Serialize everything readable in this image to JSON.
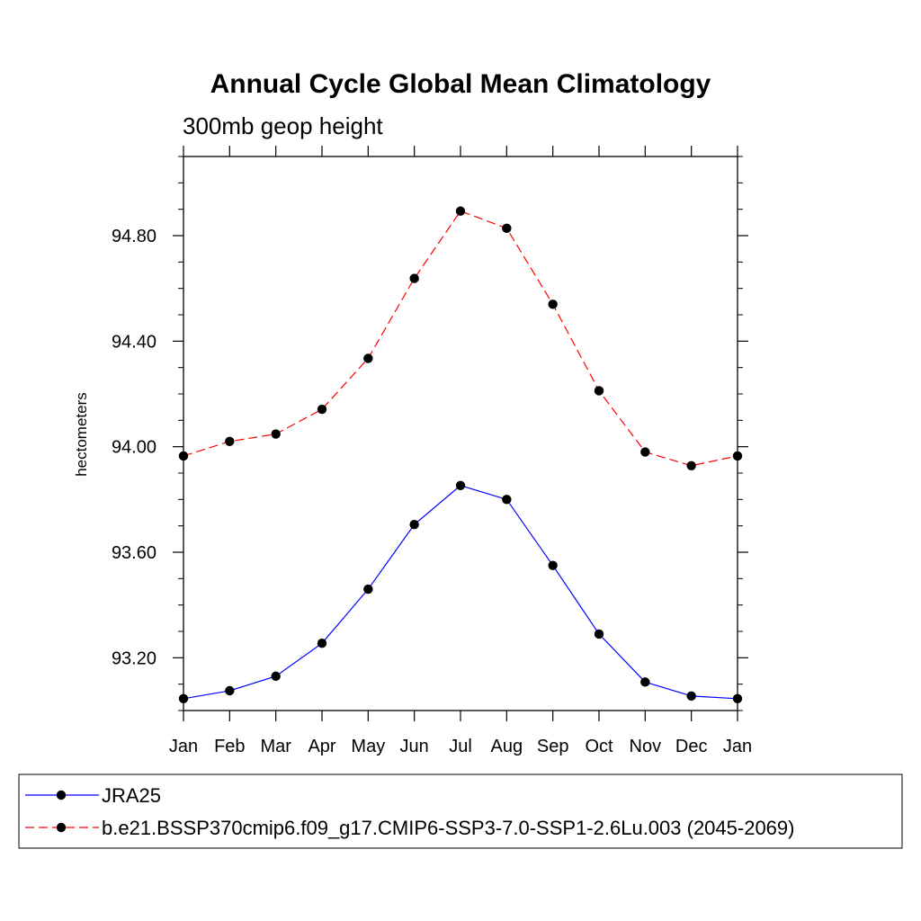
{
  "chart_data": {
    "type": "line",
    "title": "Annual Cycle Global Mean Climatology",
    "subtitle": "300mb geop height",
    "xlabel": "",
    "ylabel": "hectometers",
    "categories": [
      "Jan",
      "Feb",
      "Mar",
      "Apr",
      "May",
      "Jun",
      "Jul",
      "Aug",
      "Sep",
      "Oct",
      "Nov",
      "Dec",
      "Jan"
    ],
    "ylim": [
      93.0,
      95.1
    ],
    "yticks": [
      93.2,
      93.6,
      94.0,
      94.4,
      94.8
    ],
    "ytick_labels": [
      "93.20",
      "93.60",
      "94.00",
      "94.40",
      "94.80"
    ],
    "grid": false,
    "legend_position": "bottom",
    "series": [
      {
        "name": "JRA25",
        "color": "#0000ff",
        "dash": "solid",
        "marker": "dot",
        "values": [
          93.045,
          93.075,
          93.13,
          93.255,
          93.46,
          93.705,
          93.853,
          93.8,
          93.55,
          93.29,
          93.108,
          93.055,
          93.045
        ]
      },
      {
        "name": "b.e21.BSSP370cmip6.f09_g17.CMIP6-SSP3-7.0-SSP1-2.6Lu.003 (2045-2069)",
        "color": "#ff0000",
        "dash": "dashed",
        "marker": "dot",
        "values": [
          93.965,
          94.02,
          94.048,
          94.142,
          94.335,
          94.638,
          94.893,
          94.828,
          94.54,
          94.212,
          93.98,
          93.928,
          93.965
        ]
      }
    ]
  }
}
